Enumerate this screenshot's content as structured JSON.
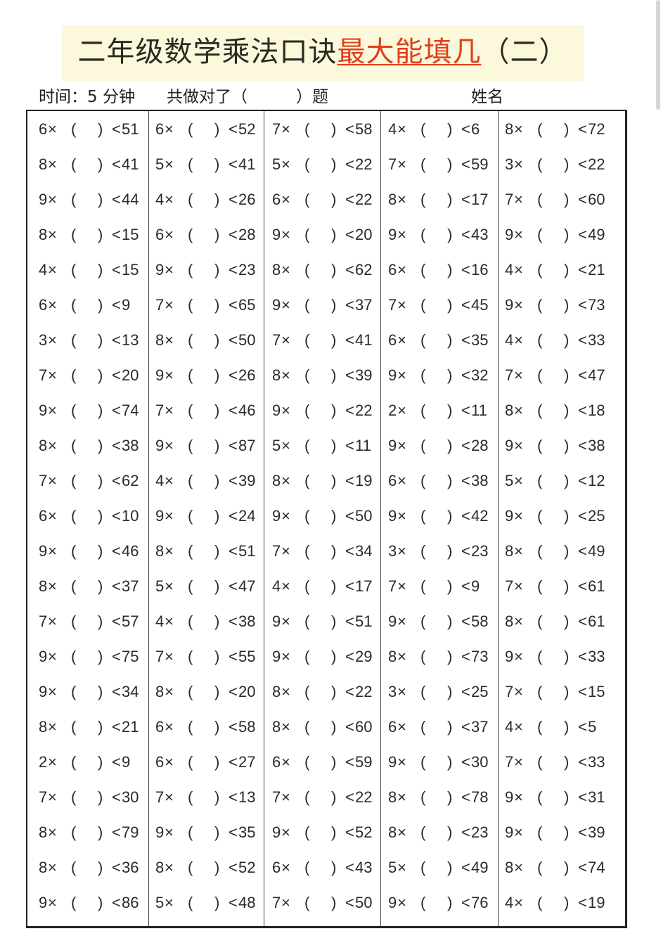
{
  "title": {
    "main": "二年级数学乘法口诀",
    "highlight": "最大能填几",
    "suffix": "（二）",
    "highlight_color": "#e0401a",
    "box_color": "#fbf8dc"
  },
  "subheader": {
    "time": "时间：5 分钟",
    "score": "共做对了（　　　）题",
    "name": "姓名"
  },
  "symbols": {
    "times": "×",
    "open": "(",
    "close": ")",
    "lt": "<"
  },
  "rows": [
    [
      [
        "6",
        "51"
      ],
      [
        "6",
        "52"
      ],
      [
        "7",
        "58"
      ],
      [
        "4",
        "6"
      ],
      [
        "8",
        "72"
      ]
    ],
    [
      [
        "8",
        "41"
      ],
      [
        "5",
        "41"
      ],
      [
        "5",
        "22"
      ],
      [
        "7",
        "59"
      ],
      [
        "3",
        "22"
      ]
    ],
    [
      [
        "9",
        "44"
      ],
      [
        "4",
        "26"
      ],
      [
        "6",
        "22"
      ],
      [
        "8",
        "17"
      ],
      [
        "7",
        "60"
      ]
    ],
    [
      [
        "8",
        "15"
      ],
      [
        "6",
        "28"
      ],
      [
        "9",
        "20"
      ],
      [
        "9",
        "43"
      ],
      [
        "9",
        "49"
      ]
    ],
    [
      [
        "4",
        "15"
      ],
      [
        "9",
        "23"
      ],
      [
        "8",
        "62"
      ],
      [
        "6",
        "16"
      ],
      [
        "4",
        "21"
      ]
    ],
    [
      [
        "6",
        "9"
      ],
      [
        "7",
        "65"
      ],
      [
        "9",
        "37"
      ],
      [
        "7",
        "45"
      ],
      [
        "9",
        "73"
      ]
    ],
    [
      [
        "3",
        "13"
      ],
      [
        "8",
        "50"
      ],
      [
        "7",
        "41"
      ],
      [
        "6",
        "35"
      ],
      [
        "4",
        "33"
      ]
    ],
    [
      [
        "7",
        "20"
      ],
      [
        "9",
        "26"
      ],
      [
        "8",
        "39"
      ],
      [
        "9",
        "32"
      ],
      [
        "7",
        "47"
      ]
    ],
    [
      [
        "9",
        "74"
      ],
      [
        "7",
        "46"
      ],
      [
        "9",
        "22"
      ],
      [
        "2",
        "11"
      ],
      [
        "8",
        "18"
      ]
    ],
    [
      [
        "8",
        "38"
      ],
      [
        "9",
        "87"
      ],
      [
        "5",
        "11"
      ],
      [
        "9",
        "28"
      ],
      [
        "9",
        "38"
      ]
    ],
    [
      [
        "7",
        "62"
      ],
      [
        "4",
        "39"
      ],
      [
        "8",
        "19"
      ],
      [
        "6",
        "38"
      ],
      [
        "5",
        "12"
      ]
    ],
    [
      [
        "6",
        "10"
      ],
      [
        "9",
        "24"
      ],
      [
        "9",
        "50"
      ],
      [
        "9",
        "42"
      ],
      [
        "9",
        "25"
      ]
    ],
    [
      [
        "9",
        "46"
      ],
      [
        "8",
        "51"
      ],
      [
        "7",
        "34"
      ],
      [
        "3",
        "23"
      ],
      [
        "8",
        "49"
      ]
    ],
    [
      [
        "8",
        "37"
      ],
      [
        "5",
        "47"
      ],
      [
        "4",
        "17"
      ],
      [
        "7",
        "9"
      ],
      [
        "7",
        "61"
      ]
    ],
    [
      [
        "7",
        "57"
      ],
      [
        "4",
        "38"
      ],
      [
        "9",
        "51"
      ],
      [
        "9",
        "58"
      ],
      [
        "8",
        "61"
      ]
    ],
    [
      [
        "9",
        "75"
      ],
      [
        "7",
        "55"
      ],
      [
        "9",
        "29"
      ],
      [
        "8",
        "73"
      ],
      [
        "9",
        "33"
      ]
    ],
    [
      [
        "9",
        "34"
      ],
      [
        "8",
        "20"
      ],
      [
        "8",
        "22"
      ],
      [
        "3",
        "25"
      ],
      [
        "7",
        "15"
      ]
    ],
    [
      [
        "8",
        "21"
      ],
      [
        "6",
        "58"
      ],
      [
        "8",
        "60"
      ],
      [
        "6",
        "37"
      ],
      [
        "4",
        "5"
      ]
    ],
    [
      [
        "2",
        "9"
      ],
      [
        "6",
        "27"
      ],
      [
        "6",
        "59"
      ],
      [
        "9",
        "30"
      ],
      [
        "7",
        "33"
      ]
    ],
    [
      [
        "7",
        "30"
      ],
      [
        "7",
        "13"
      ],
      [
        "7",
        "22"
      ],
      [
        "8",
        "78"
      ],
      [
        "9",
        "31"
      ]
    ],
    [
      [
        "8",
        "79"
      ],
      [
        "9",
        "35"
      ],
      [
        "9",
        "52"
      ],
      [
        "8",
        "23"
      ],
      [
        "9",
        "39"
      ]
    ],
    [
      [
        "8",
        "36"
      ],
      [
        "8",
        "52"
      ],
      [
        "6",
        "43"
      ],
      [
        "5",
        "49"
      ],
      [
        "8",
        "74"
      ]
    ],
    [
      [
        "9",
        "86"
      ],
      [
        "5",
        "48"
      ],
      [
        "7",
        "50"
      ],
      [
        "9",
        "76"
      ],
      [
        "4",
        "19"
      ]
    ]
  ]
}
